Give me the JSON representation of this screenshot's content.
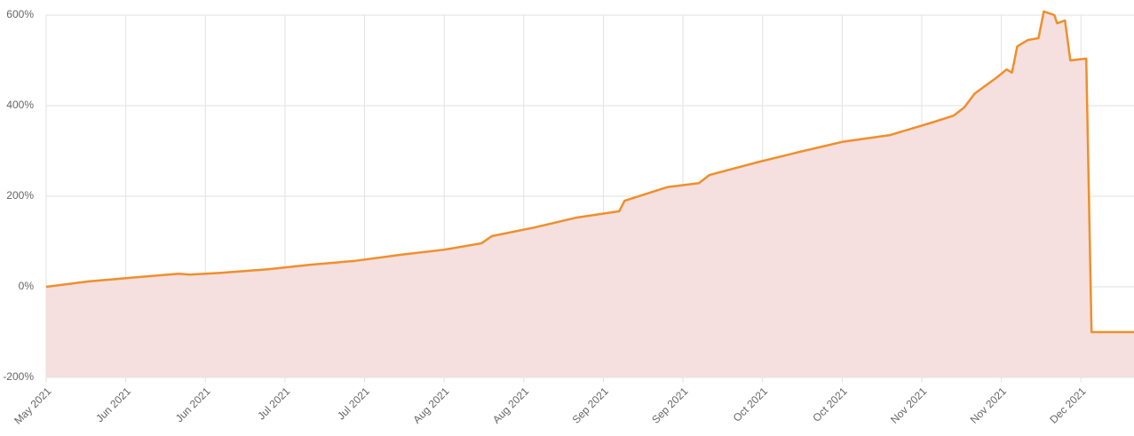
{
  "chart_data": {
    "type": "area",
    "x": [
      0,
      8,
      16,
      25,
      27,
      33,
      42,
      50,
      58,
      67,
      75,
      82,
      84,
      92,
      100,
      108,
      109,
      117,
      123,
      125,
      134,
      142,
      150,
      159,
      167,
      171,
      173,
      175,
      179,
      181,
      182,
      183,
      185,
      187,
      188,
      190,
      190.5,
      192,
      193,
      196,
      197,
      205
    ],
    "values": [
      0,
      12,
      20,
      29,
      27,
      31,
      39,
      49,
      57,
      71,
      82,
      96,
      112,
      131,
      153,
      167,
      190,
      220,
      229,
      247,
      275,
      298,
      320,
      335,
      363,
      378,
      396,
      427,
      461,
      480,
      473,
      531,
      545,
      549,
      608,
      600,
      582,
      588,
      500,
      504,
      -100,
      -100
    ],
    "color": "#ef8f2b",
    "fill": "#f5dfdf",
    "xlim": [
      0,
      205
    ],
    "xticks": [
      {
        "value": 0,
        "label": "May 2021"
      },
      {
        "value": 15,
        "label": "Jun 2021"
      },
      {
        "value": 30,
        "label": "Jun 2021"
      },
      {
        "value": 45,
        "label": "Jul 2021"
      },
      {
        "value": 60,
        "label": "Jul 2021"
      },
      {
        "value": 75,
        "label": "Aug 2021"
      },
      {
        "value": 90,
        "label": "Aug 2021"
      },
      {
        "value": 105,
        "label": "Sep 2021"
      },
      {
        "value": 120,
        "label": "Sep 2021"
      },
      {
        "value": 135,
        "label": "Oct 2021"
      },
      {
        "value": 150,
        "label": "Oct 2021"
      },
      {
        "value": 165,
        "label": "Nov 2021"
      },
      {
        "value": 180,
        "label": "Nov 2021"
      },
      {
        "value": 195,
        "label": "Dec 2021"
      }
    ],
    "ylim": [
      -200,
      600
    ],
    "yticks": [
      {
        "value": -200,
        "label": "-200%"
      },
      {
        "value": 0,
        "label": "0%"
      },
      {
        "value": 200,
        "label": "200%"
      },
      {
        "value": 400,
        "label": "400%"
      },
      {
        "value": 600,
        "label": "600%"
      }
    ],
    "grid": true
  }
}
